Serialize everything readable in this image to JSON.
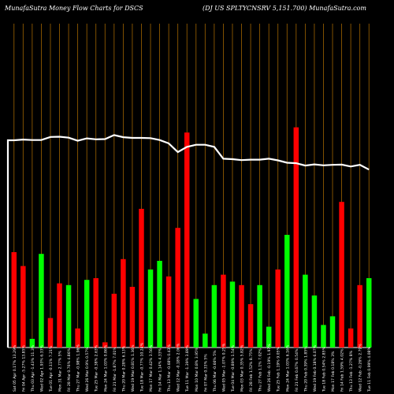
{
  "header": {
    "left": "MunafaSutra  Money Flow  Charts for DSCS",
    "right": "(DJ US SPLTYCNSRV 5,151.700) MunafaSutra.com"
  },
  "chart_data": {
    "type": "bar",
    "line_color": "#ffffff",
    "grid_color": "#a06400",
    "up_color": "#00ff00",
    "down_color": "#ff0000",
    "bars": [
      {
        "label": "Sat 05 Apr 0.17% 13.29%",
        "direction": "down",
        "value": 55
      },
      {
        "label": "Fri 04 Apr -5.27% 13.85%",
        "direction": "down",
        "value": 47
      },
      {
        "label": "Thu 03 Apr -1.43% 11.3%",
        "direction": "up",
        "value": 5
      },
      {
        "label": "Wed 02 Apr 1.93% 6.33%",
        "direction": "up",
        "value": 54
      },
      {
        "label": "Tue 01 Apr -0.11% 7.21%",
        "direction": "down",
        "value": 17
      },
      {
        "label": "Mon 31 Mar 2.77% 5%",
        "direction": "down",
        "value": 37
      },
      {
        "label": "Fri 28 Mar 0.76% 4.86%",
        "direction": "up",
        "value": 36
      },
      {
        "label": "Thu 27 Mar -0.98% 1.96%",
        "direction": "down",
        "value": 11
      },
      {
        "label": "Wed 26 Mar 0.9% 0.57%",
        "direction": "up",
        "value": 39
      },
      {
        "label": "Tue 25 Mar -0.38% 2.63%",
        "direction": "down",
        "value": 40
      },
      {
        "label": "Mon 24 Mar 1.03% 0.86%",
        "direction": "down",
        "value": 3
      },
      {
        "label": "Fri 21 Mar -1.87% 7.01%",
        "direction": "down",
        "value": 31
      },
      {
        "label": "Thu 20 Mar 0.28% 6.13%",
        "direction": "down",
        "value": 51
      },
      {
        "label": "Wed 19 Mar 0.81% 1.36%",
        "direction": "down",
        "value": 35
      },
      {
        "label": "Tue 18 Mar -0.77% 10.24%",
        "direction": "down",
        "value": 80
      },
      {
        "label": "Mon 17 Mar 0.42% 3.56%",
        "direction": "up",
        "value": 45
      },
      {
        "label": "Fri 14 Mar 1.14% 4.33%",
        "direction": "up",
        "value": 50
      },
      {
        "label": "Thu 13 Mar -0.68% 0.43%",
        "direction": "down",
        "value": 41
      },
      {
        "label": "Wed 12 Mar -0.18% 2.06%",
        "direction": "down",
        "value": 69
      },
      {
        "label": "Tue 11 Mar -1.39% 3.89%",
        "direction": "down",
        "value": 124
      },
      {
        "label": "Mon 10 Mar 0.8% 3.95%",
        "direction": "up",
        "value": 28
      },
      {
        "label": "Fri 07 Mar 0.33% 5%",
        "direction": "up",
        "value": 8
      },
      {
        "label": "Thu 06 Mar -0.66% 5%",
        "direction": "up",
        "value": 36
      },
      {
        "label": "Wed 05 Mar -1.07% 0.25%",
        "direction": "down",
        "value": 42
      },
      {
        "label": "Tue 04 Mar -0.89% 1.54%",
        "direction": "up",
        "value": 38
      },
      {
        "label": "Mon 03 Mar 0.35% 5.82%",
        "direction": "down",
        "value": 36
      },
      {
        "label": "Fri 28 Feb 1.52% 8.75%",
        "direction": "down",
        "value": 25
      },
      {
        "label": "Thu 27 Feb 1.1% 7.02%",
        "direction": "up",
        "value": 36
      },
      {
        "label": "Wed 26 Feb -0.19% 1.97%",
        "direction": "up",
        "value": 12
      },
      {
        "label": "Tue 25 Feb 1.19% 9.05%",
        "direction": "down",
        "value": 45
      },
      {
        "label": "Mon 24 Mar 1.03% 6.16%",
        "direction": "up",
        "value": 65
      },
      {
        "label": "Fri 21 Feb 0.67% 0.54%",
        "direction": "down",
        "value": 127
      },
      {
        "label": "Thu 20 Feb 0.39% 1.85%",
        "direction": "up",
        "value": 42
      },
      {
        "label": "Wed 19 Feb 0.18% 6.07%",
        "direction": "up",
        "value": 30
      },
      {
        "label": "Tue 18 Feb 0.54% 2.85%",
        "direction": "up",
        "value": 13
      },
      {
        "label": "Mon 17 Feb 0.18% 3%",
        "direction": "up",
        "value": 18
      },
      {
        "label": "Fri 14 Feb 1.59% 4.02%",
        "direction": "down",
        "value": 84
      },
      {
        "label": "Thu 13 Feb -1.27% 8%",
        "direction": "down",
        "value": 11
      },
      {
        "label": "Wed 12 Feb -0.26% 2.79%",
        "direction": "down",
        "value": 36
      },
      {
        "label": "Tue 11 Feb 0.99% 4.08%",
        "direction": "up",
        "value": 40
      }
    ],
    "price_line": [
      84,
      84.3,
      84.1,
      84.1,
      85.4,
      85.5,
      85.1,
      83.8,
      84.8,
      84.4,
      84.5,
      86.2,
      85.3,
      85,
      85,
      84.9,
      84.1,
      82.7,
      79,
      81.2,
      82.1,
      82.1,
      81.2,
      76.2,
      76,
      75.6,
      75.8,
      75.8,
      76.2,
      75.5,
      74.5,
      74.3,
      73.3,
      73.8,
      73.4,
      73.6,
      73.7,
      72.9,
      73.6,
      71.6
    ]
  }
}
